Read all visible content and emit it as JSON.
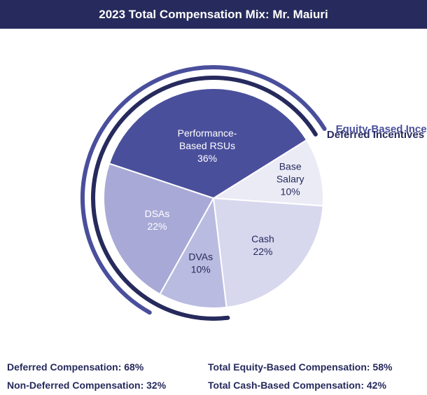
{
  "chart_data": {
    "type": "pie",
    "title": "2023 Total Compensation Mix: Mr. Maiuri",
    "slices": [
      {
        "label": [
          "Base",
          "Salary"
        ],
        "value": 10,
        "value_label": "10%",
        "color": "#ebebf6",
        "text_color": "#262a5c"
      },
      {
        "label": [
          "Cash"
        ],
        "value": 22,
        "value_label": "22%",
        "color": "#d7d7ee",
        "text_color": "#262a5c"
      },
      {
        "label": [
          "DVAs"
        ],
        "value": 10,
        "value_label": "10%",
        "color": "#babbe0",
        "text_color": "#262a5c"
      },
      {
        "label": [
          "DSAs"
        ],
        "value": 22,
        "value_label": "22%",
        "color": "#a8a9d6",
        "text_color": "#ffffff"
      },
      {
        "label": [
          "Performance-",
          "Based RSUs"
        ],
        "value": 36,
        "value_label": "36%",
        "color": "#4a4f9c",
        "text_color": "#ffffff"
      }
    ],
    "arcs": [
      {
        "name": "Equity-Based Incentives",
        "color": "#4a4f9c",
        "covers": [
          "DSAs",
          "Performance-Based RSUs"
        ],
        "total": 58
      },
      {
        "name": "Deferred Incentives",
        "color": "#262a5c",
        "covers": [
          "DVAs",
          "DSAs",
          "Performance-Based RSUs"
        ],
        "total": 68
      }
    ]
  },
  "summary": {
    "deferred": "Deferred Compensation: 68%",
    "non_deferred": "Non-Deferred Compensation: 32%",
    "equity": "Total Equity-Based Compensation: 58%",
    "cash": "Total Cash-Based Compensation: 42%"
  }
}
